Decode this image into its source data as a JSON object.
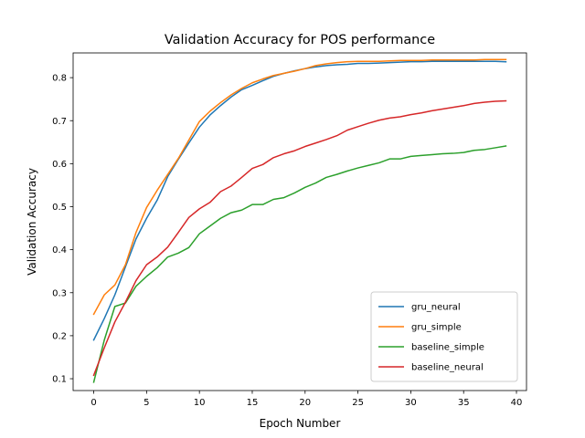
{
  "chart_data": {
    "type": "line",
    "title": "Validation Accuracy for POS performance",
    "xlabel": "Epoch Number",
    "ylabel": "Validation Accuracy",
    "xlim": [
      -1.95,
      40.95
    ],
    "ylim": [
      0.0725,
      0.8575
    ],
    "xticks": [
      0,
      5,
      10,
      15,
      20,
      25,
      30,
      35,
      40
    ],
    "yticks": [
      0.1,
      0.2,
      0.3,
      0.4,
      0.5,
      0.6,
      0.7,
      0.8
    ],
    "ytick_labels": [
      "0.1",
      "0.2",
      "0.3",
      "0.4",
      "0.5",
      "0.6",
      "0.7",
      "0.8"
    ],
    "grid": false,
    "legend_position": "lower-right",
    "x": [
      0,
      1,
      2,
      3,
      4,
      5,
      6,
      7,
      8,
      9,
      10,
      11,
      12,
      13,
      14,
      15,
      16,
      17,
      18,
      19,
      20,
      21,
      22,
      23,
      24,
      25,
      26,
      27,
      28,
      29,
      30,
      31,
      32,
      33,
      34,
      35,
      36,
      37,
      38,
      39
    ],
    "series": [
      {
        "name": "gru_neural",
        "color": "#1f77b4",
        "values": [
          0.19,
          0.24,
          0.295,
          0.36,
          0.425,
          0.473,
          0.515,
          0.57,
          0.61,
          0.648,
          0.685,
          0.713,
          0.735,
          0.755,
          0.772,
          0.782,
          0.793,
          0.803,
          0.81,
          0.816,
          0.821,
          0.825,
          0.828,
          0.83,
          0.831,
          0.833,
          0.833,
          0.834,
          0.835,
          0.836,
          0.837,
          0.837,
          0.838,
          0.838,
          0.838,
          0.838,
          0.838,
          0.838,
          0.838,
          0.837
        ]
      },
      {
        "name": "gru_simple",
        "color": "#ff7f0e",
        "values": [
          0.25,
          0.295,
          0.318,
          0.365,
          0.44,
          0.498,
          0.538,
          0.575,
          0.612,
          0.655,
          0.698,
          0.722,
          0.742,
          0.76,
          0.775,
          0.788,
          0.797,
          0.805,
          0.81,
          0.815,
          0.821,
          0.828,
          0.832,
          0.835,
          0.837,
          0.838,
          0.838,
          0.838,
          0.839,
          0.84,
          0.84,
          0.84,
          0.841,
          0.841,
          0.841,
          0.841,
          0.841,
          0.842,
          0.842,
          0.842
        ]
      },
      {
        "name": "baseline_simple",
        "color": "#2ca02c",
        "values": [
          0.092,
          0.19,
          0.268,
          0.276,
          0.315,
          0.338,
          0.358,
          0.383,
          0.392,
          0.405,
          0.437,
          0.455,
          0.473,
          0.486,
          0.492,
          0.505,
          0.505,
          0.517,
          0.521,
          0.532,
          0.545,
          0.555,
          0.568,
          0.575,
          0.583,
          0.59,
          0.596,
          0.602,
          0.611,
          0.611,
          0.617,
          0.619,
          0.621,
          0.623,
          0.624,
          0.626,
          0.631,
          0.633,
          0.637,
          0.641
        ]
      },
      {
        "name": "baseline_neural",
        "color": "#d62728",
        "values": [
          0.108,
          0.172,
          0.232,
          0.278,
          0.328,
          0.365,
          0.383,
          0.406,
          0.44,
          0.475,
          0.495,
          0.51,
          0.535,
          0.548,
          0.568,
          0.589,
          0.598,
          0.614,
          0.623,
          0.63,
          0.64,
          0.648,
          0.656,
          0.665,
          0.678,
          0.686,
          0.694,
          0.701,
          0.706,
          0.709,
          0.714,
          0.718,
          0.723,
          0.727,
          0.731,
          0.735,
          0.74,
          0.743,
          0.745,
          0.746
        ]
      }
    ]
  }
}
